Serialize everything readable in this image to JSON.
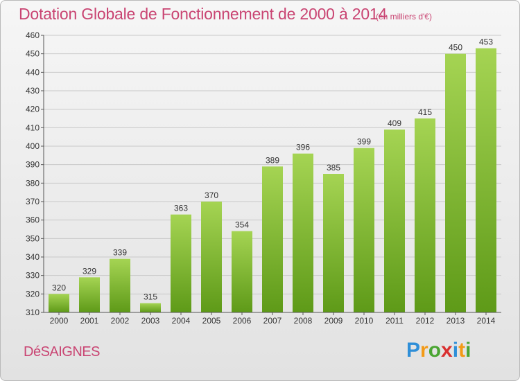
{
  "header": {
    "title": "Dotation Globale de Fonctionnement de 2000 à 2014",
    "subtitle": "(en milliers d'€)"
  },
  "footer": {
    "commune": "DéSAIGNES",
    "brand": [
      "P",
      "r",
      "o",
      "x",
      "i",
      "t",
      "i"
    ],
    "brand_colors": [
      "#2f8fd8",
      "#f39a16",
      "#4aa532",
      "#d93030",
      "#2f8fd8",
      "#f39a16",
      "#4aa532"
    ]
  },
  "colors": {
    "bar_top": "#a5d453",
    "bar_bottom": "#5e9a18",
    "text_accent": "#c94472"
  },
  "chart_data": {
    "type": "bar",
    "title": "Dotation Globale de Fonctionnement de 2000 à 2014",
    "subtitle": "(en milliers d'€)",
    "categories": [
      "2000",
      "2001",
      "2002",
      "2003",
      "2004",
      "2005",
      "2006",
      "2007",
      "2008",
      "2009",
      "2010",
      "2011",
      "2012",
      "2013",
      "2014"
    ],
    "values": [
      320,
      329,
      339,
      315,
      363,
      370,
      354,
      389,
      396,
      385,
      399,
      409,
      415,
      450,
      453
    ],
    "ylim": [
      310,
      460
    ],
    "yticks": [
      310,
      320,
      330,
      340,
      350,
      360,
      370,
      380,
      390,
      400,
      410,
      420,
      430,
      440,
      450,
      460
    ],
    "grid": true,
    "data_labels": true
  }
}
